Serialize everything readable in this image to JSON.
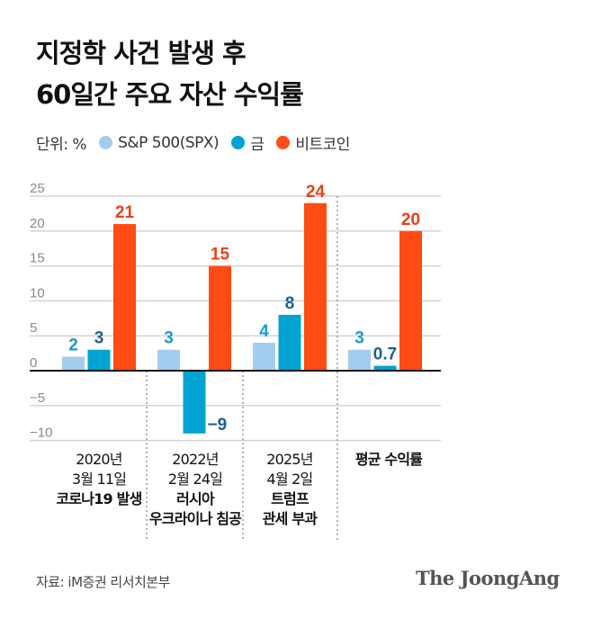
{
  "title_lines": [
    "지정학 사건 발생 후",
    "60일간 주요 자산 수익률"
  ],
  "legend": {
    "unit": "단위: %",
    "items": [
      "S&P 500(SPX)",
      "금",
      "비트코인"
    ]
  },
  "colors": {
    "spx": "#a3cdee",
    "gold": "#00a3d1",
    "btc": "#ff4b14",
    "spx_label": "#1a9ccc",
    "gold_label": "#1d5f91",
    "btc_label": "#e8401a"
  },
  "chart_data": {
    "type": "bar",
    "categories": [
      {
        "lines": [
          "2020년",
          "3월 11일"
        ],
        "bold": [
          "코로나19 발생"
        ]
      },
      {
        "lines": [
          "2022년",
          "2월 24일"
        ],
        "bold": [
          "러시아",
          "우크라이나 침공"
        ]
      },
      {
        "lines": [
          "2025년",
          "4월 2일"
        ],
        "bold": [
          "트럼프",
          "관세 부과"
        ]
      },
      {
        "lines": [],
        "bold": [
          "평균 수익률"
        ]
      }
    ],
    "series": [
      {
        "name": "S&P 500(SPX)",
        "values": [
          2,
          3,
          4,
          3
        ],
        "labels": [
          "2",
          "3",
          "4",
          "3"
        ]
      },
      {
        "name": "금",
        "values": [
          3,
          -9,
          8,
          0.7
        ],
        "labels": [
          "3",
          "−9",
          "8",
          "0.7"
        ]
      },
      {
        "name": "비트코인",
        "values": [
          21,
          15,
          24,
          20
        ],
        "labels": [
          "21",
          "15",
          "24",
          "20"
        ]
      }
    ],
    "yticks": [
      25,
      20,
      15,
      10,
      5,
      0,
      -5,
      -10
    ],
    "ytick_labels": [
      "25",
      "20",
      "15",
      "10",
      "5",
      "0",
      "−5",
      "−10"
    ],
    "ylim": [
      -10,
      25
    ],
    "grid": true
  },
  "source": "자료: iM증권 리서치본부",
  "logo": "The JoongAng"
}
